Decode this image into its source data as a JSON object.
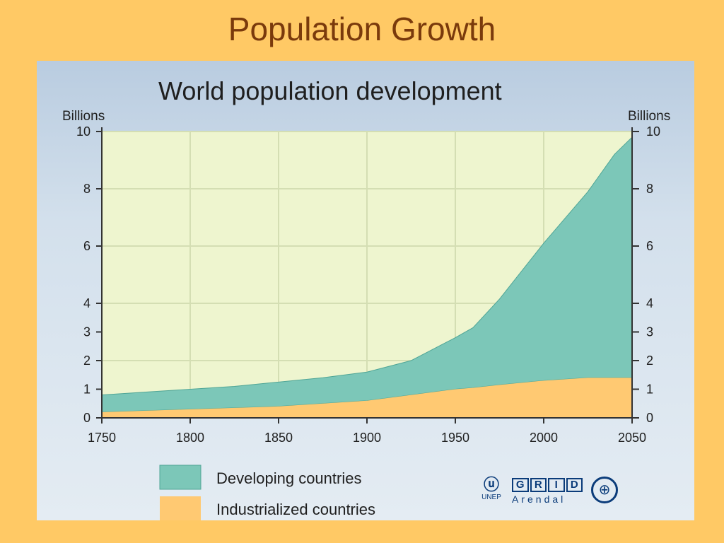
{
  "slide": {
    "title": "Population Growth"
  },
  "colors": {
    "developing": "#7CC7B8",
    "developing_edge": "#4FA596",
    "industrialized": "#FFC972",
    "plot_bg": "#EEF5CF",
    "grid": "#D4DEB3",
    "title": "#7A3A0C"
  },
  "chart_data": {
    "type": "area",
    "title": "World population development",
    "ylabel_left": "Billions",
    "ylabel_right": "Billions",
    "xlim": [
      1750,
      2050
    ],
    "ylim": [
      0,
      10
    ],
    "x_ticks": [
      1750,
      1800,
      1850,
      1900,
      1950,
      2000,
      2050
    ],
    "y_ticks_left": [
      0,
      1,
      2,
      3,
      4,
      6,
      8,
      10
    ],
    "y_ticks_right": [
      0,
      1,
      2,
      3,
      4,
      6,
      8,
      10
    ],
    "grid": true,
    "stacked": true,
    "x": [
      1750,
      1775,
      1800,
      1825,
      1850,
      1875,
      1900,
      1925,
      1950,
      1960,
      1975,
      2000,
      2025,
      2040,
      2050
    ],
    "series": [
      {
        "name": "Industrialized countries",
        "values": [
          0.2,
          0.25,
          0.3,
          0.35,
          0.4,
          0.5,
          0.6,
          0.8,
          1.0,
          1.05,
          1.15,
          1.3,
          1.4,
          1.4,
          1.4
        ]
      },
      {
        "name": "Developing countries",
        "values": [
          0.6,
          0.65,
          0.7,
          0.75,
          0.85,
          0.9,
          1.0,
          1.2,
          1.8,
          2.1,
          3.0,
          4.8,
          6.5,
          7.8,
          8.4
        ]
      }
    ],
    "legend_placement": "bottom-left"
  },
  "legend": {
    "developing": "Developing countries",
    "industrialized": "Industrialized countries"
  },
  "logos": {
    "unep": "UNEP",
    "grid_letters": [
      "G",
      "R",
      "I",
      "D"
    ],
    "grid_sub": "Arendal",
    "unep_icon": "unep-logo-icon",
    "un_icon": "un-emblem-icon"
  }
}
